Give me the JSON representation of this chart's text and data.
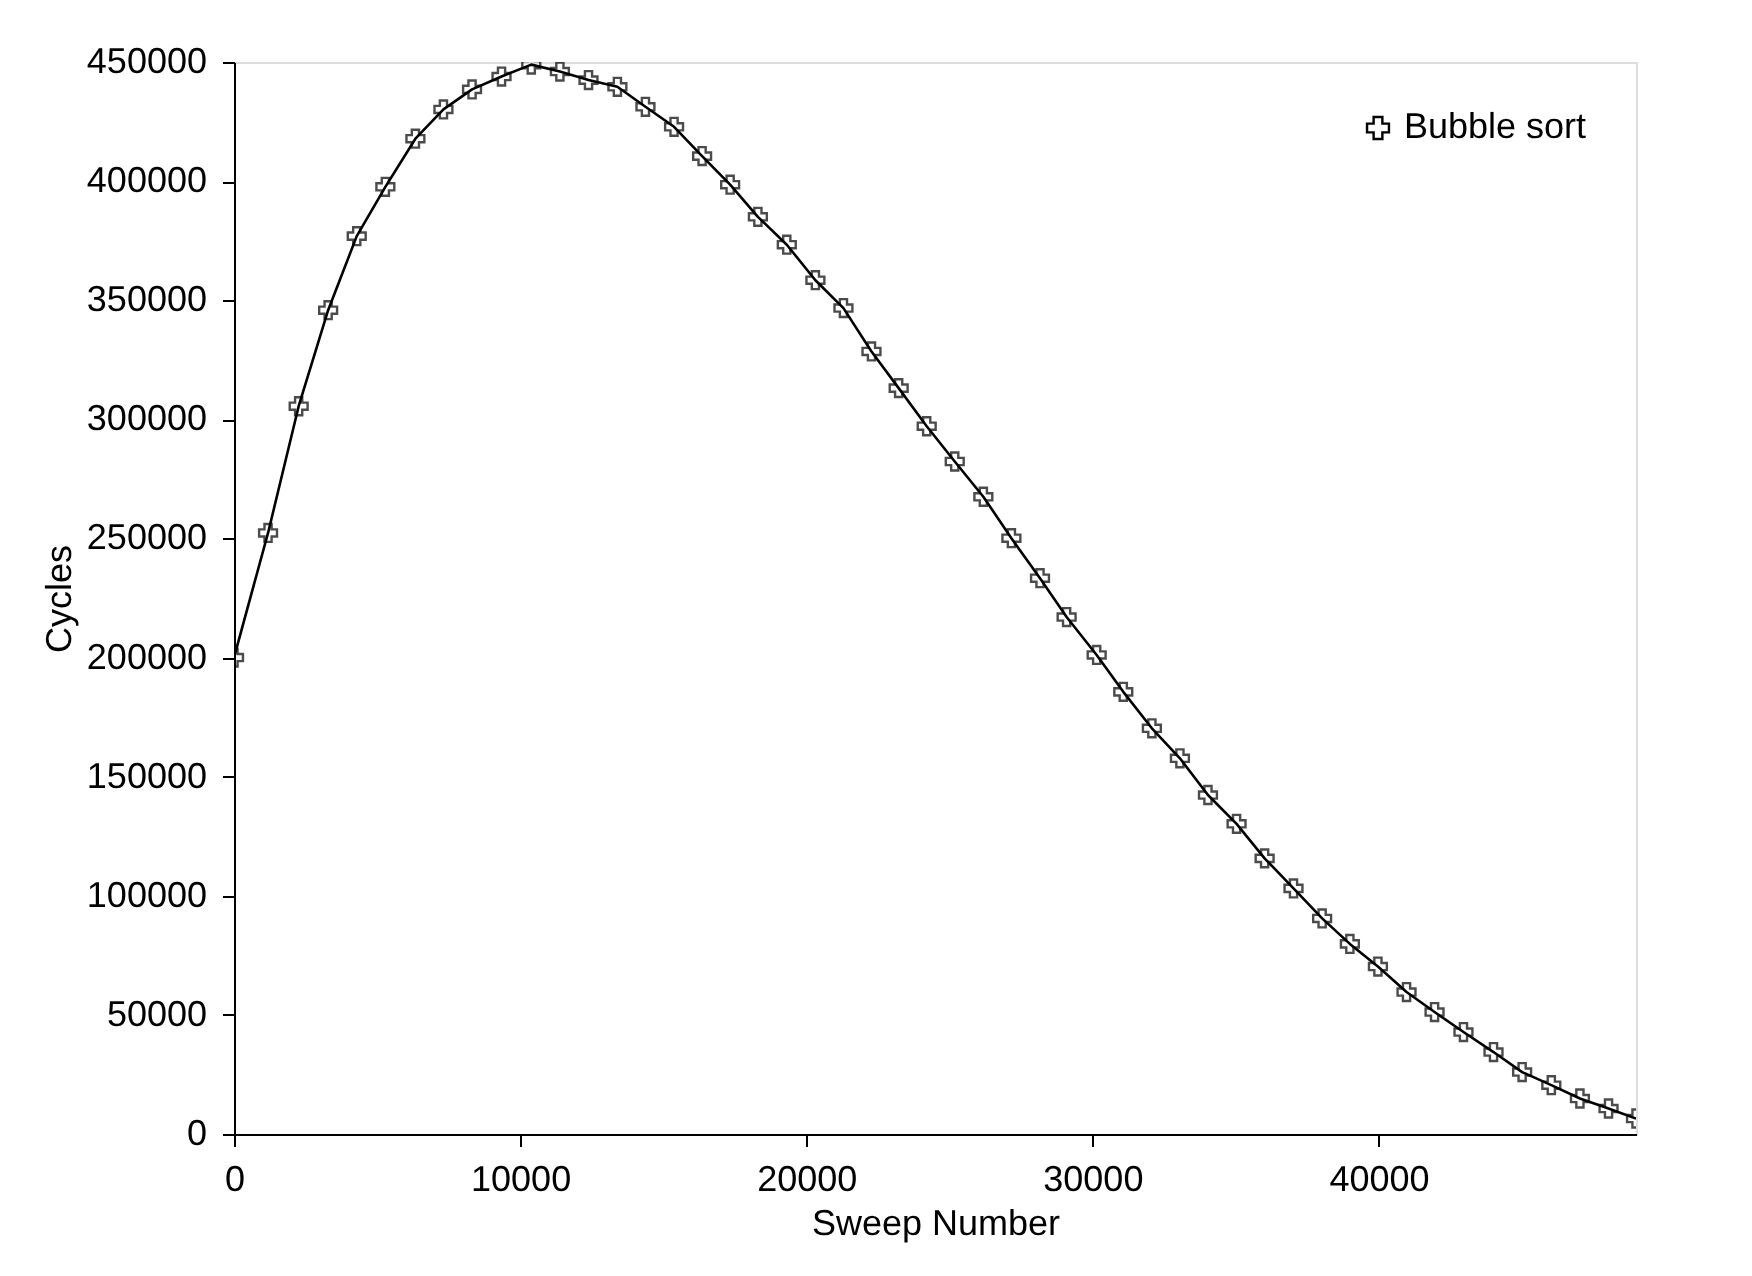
{
  "chart_data": {
    "type": "line",
    "xlabel": "Sweep Number",
    "ylabel": "Cycles",
    "xlim": [
      0,
      49000
    ],
    "ylim": [
      0,
      450000
    ],
    "xticks": [
      0,
      10000,
      20000,
      30000,
      40000
    ],
    "yticks": [
      0,
      50000,
      100000,
      150000,
      200000,
      250000,
      300000,
      350000,
      400000,
      450000
    ],
    "x": [
      0,
      1190,
      2260,
      3290,
      4290,
      5290,
      6340,
      7320,
      8320,
      9350,
      10390,
      11390,
      12390,
      13400,
      14380,
      15380,
      16360,
      17340,
      18310,
      19320,
      20320,
      21300,
      22280,
      23230,
      24210,
      25190,
      26190,
      27170,
      28170,
      29100,
      30150,
      31080,
      32080,
      33060,
      34040,
      35040,
      36020,
      37030,
      38030,
      39000,
      39980,
      40980,
      41960,
      42970,
      44020,
      45020,
      46040,
      47040,
      48040,
      49000
    ],
    "series": [
      {
        "name": "Bubble sort",
        "color": "#000000",
        "values": [
          200000,
          252300,
          305500,
          345800,
          376900,
          397600,
          417800,
          430100,
          438500,
          443900,
          448900,
          446000,
          442400,
          439600,
          431200,
          422800,
          410500,
          398500,
          385000,
          373300,
          358400,
          346700,
          328500,
          313100,
          297100,
          282300,
          267500,
          250100,
          233300,
          217000,
          201100,
          185600,
          170300,
          157700,
          142300,
          130200,
          115700,
          103100,
          90500,
          79800,
          70300,
          59600,
          51200,
          42800,
          34400,
          26000,
          20500,
          14900,
          10700,
          6500
        ]
      }
    ],
    "marker": "cross",
    "line_style": "solid",
    "legend": "top right",
    "grid": false
  }
}
